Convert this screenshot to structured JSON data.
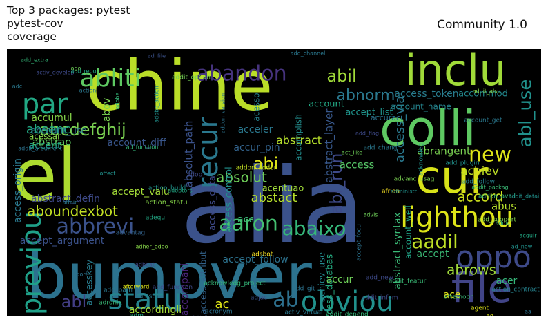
{
  "title_left": "Top 3 packages: pytest\npytest-cov\ncoverage",
  "title_right": "Community 1.0",
  "chart_data": {
    "type": "wordcloud",
    "background": "#000000",
    "colormap": "viridis",
    "words": [
      {
        "text": "alia",
        "weight": 1.0,
        "color": "#3b528b"
      },
      {
        "text": "chine",
        "weight": 0.82,
        "color": "#bade28"
      },
      {
        "text": "bumpver",
        "weight": 0.8,
        "color": "#2c728e"
      },
      {
        "text": "el",
        "weight": 0.78,
        "color": "#addc30"
      },
      {
        "text": "colli",
        "weight": 0.62,
        "color": "#5ec962"
      },
      {
        "text": "inclu",
        "weight": 0.58,
        "color": "#a0da39"
      },
      {
        "text": "cur",
        "weight": 0.55,
        "color": "#d8e219"
      },
      {
        "text": "file",
        "weight": 0.45,
        "color": "#414487"
      },
      {
        "text": "lighthou",
        "weight": 0.4,
        "color": "#dde318"
      },
      {
        "text": "oppo",
        "weight": 0.36,
        "color": "#3e4a89"
      },
      {
        "text": "recur",
        "weight": 0.35,
        "color": "#2a788e"
      },
      {
        "text": "statu",
        "weight": 0.33,
        "color": "#25848e"
      },
      {
        "text": "obviou",
        "weight": 0.32,
        "color": "#21918c"
      },
      {
        "text": "previou",
        "weight": 0.3,
        "color": "#1fa088"
      },
      {
        "text": "par",
        "weight": 0.3,
        "color": "#22a884"
      },
      {
        "text": "abliti",
        "weight": 0.28,
        "color": "#5ec962"
      },
      {
        "text": "abandon",
        "weight": 0.26,
        "color": "#46337e"
      },
      {
        "text": "aaron",
        "weight": 0.25,
        "color": "#44bf70"
      },
      {
        "text": "abbrevi",
        "weight": 0.25,
        "color": "#3b528b"
      },
      {
        "text": "ab",
        "weight": 0.26,
        "color": "#2d708e"
      },
      {
        "text": "new",
        "weight": 0.24,
        "color": "#dde318"
      },
      {
        "text": "abaixo",
        "weight": 0.24,
        "color": "#35b779"
      },
      {
        "text": "aadil",
        "weight": 0.23,
        "color": "#bddf26"
      },
      {
        "text": "abcdefghij",
        "weight": 0.21,
        "color": "#7ad151"
      },
      {
        "text": "abl_run",
        "weight": 0.2,
        "color": "#3e4a89"
      },
      {
        "text": "abl_use",
        "weight": 0.2,
        "color": "#21918c"
      },
      {
        "text": "abl",
        "weight": 0.17,
        "color": "#433e85"
      },
      {
        "text": "abi",
        "weight": 0.18,
        "color": "#dde318"
      },
      {
        "text": "abil",
        "weight": 0.18,
        "color": "#a0da39"
      },
      {
        "text": "abnorm",
        "weight": 0.16,
        "color": "#2a788e"
      },
      {
        "text": "abrows",
        "weight": 0.16,
        "color": "#9fda3a"
      },
      {
        "text": "absolut",
        "weight": 0.15,
        "color": "#6ece58"
      },
      {
        "text": "absolut_path",
        "weight": 0.14,
        "color": "#3b528b"
      },
      {
        "text": "abstract",
        "weight": 0.15,
        "color": "#b5de2b"
      },
      {
        "text": "abstact",
        "weight": 0.15,
        "color": "#b5de2b"
      },
      {
        "text": "abstract_layer",
        "weight": 0.14,
        "color": "#38588c"
      },
      {
        "text": "accord",
        "weight": 0.15,
        "color": "#cde11d"
      },
      {
        "text": "abrangent",
        "weight": 0.14,
        "color": "#7ad151"
      },
      {
        "text": "achiev",
        "weight": 0.14,
        "color": "#bddf26"
      },
      {
        "text": "aboundexbot",
        "weight": 0.15,
        "color": "#c2df23"
      },
      {
        "text": "absenc",
        "weight": 0.13,
        "color": "#22a884"
      },
      {
        "text": "abstrao",
        "weight": 0.12,
        "color": "#5ec962"
      },
      {
        "text": "accumul",
        "weight": 0.12,
        "color": "#86d549"
      },
      {
        "text": "access_via",
        "weight": 0.12,
        "color": "#2a788e"
      },
      {
        "text": "access_token",
        "weight": 0.11,
        "color": "#287c8e"
      },
      {
        "text": "accommod",
        "weight": 0.1,
        "color": "#23898e"
      },
      {
        "text": "accept_list",
        "weight": 0.11,
        "color": "#1f948c"
      },
      {
        "text": "account_name",
        "weight": 0.1,
        "color": "#25848e"
      },
      {
        "text": "accuraci",
        "weight": 0.09,
        "color": "#2c728e"
      },
      {
        "text": "abstract_syntax",
        "weight": 0.11,
        "color": "#3aba76"
      },
      {
        "text": "account_well",
        "weight": 0.1,
        "color": "#20a386"
      },
      {
        "text": "access_origin",
        "weight": 0.11,
        "color": "#2a788e"
      },
      {
        "text": "access_data",
        "weight": 0.11,
        "color": "#3e4a89"
      },
      {
        "text": "access_control",
        "weight": 0.11,
        "color": "#21918c"
      },
      {
        "text": "access_attribut",
        "weight": 0.1,
        "color": "#33638d"
      },
      {
        "text": "access_databas",
        "weight": 0.1,
        "color": "#25ac82"
      },
      {
        "text": "accept_valu",
        "weight": 0.11,
        "color": "#a2da37"
      },
      {
        "text": "accept_argument",
        "weight": 0.11,
        "color": "#3b528b"
      },
      {
        "text": "accept_follow",
        "weight": 0.1,
        "color": "#2c728e"
      },
      {
        "text": "abstract_defin",
        "weight": 0.11,
        "color": "#3e4a89"
      },
      {
        "text": "account_diff",
        "weight": 0.1,
        "color": "#39568c"
      },
      {
        "text": "account_use",
        "weight": 0.1,
        "color": "#2a788e"
      },
      {
        "text": "account",
        "weight": 0.1,
        "color": "#22a884"
      },
      {
        "text": "accent",
        "weight": 0.11,
        "color": "#20a386"
      },
      {
        "text": "acceler",
        "weight": 0.1,
        "color": "#2a788e"
      },
      {
        "text": "accur_pin",
        "weight": 0.1,
        "color": "#33638d"
      },
      {
        "text": "acentuao",
        "weight": 0.09,
        "color": "#a0da39"
      },
      {
        "text": "accomplish",
        "weight": 0.09,
        "color": "#228d8d"
      },
      {
        "text": "accordingli",
        "weight": 0.1,
        "color": "#a5db36"
      },
      {
        "text": "accompani",
        "weight": 0.1,
        "color": "#482475"
      },
      {
        "text": "accesskey",
        "weight": 0.09,
        "color": "#287c8e"
      },
      {
        "text": "accept",
        "weight": 0.1,
        "color": "#3aba76"
      },
      {
        "text": "access",
        "weight": 0.1,
        "color": "#56c667"
      },
      {
        "text": "acessar",
        "weight": 0.09,
        "color": "#86d549"
      },
      {
        "text": "acesso",
        "weight": 0.08,
        "color": "#26828e"
      },
      {
        "text": "abus",
        "weight": 0.1,
        "color": "#b5de2b"
      },
      {
        "text": "abov",
        "weight": 0.1,
        "color": "#7ad151"
      },
      {
        "text": "acc",
        "weight": 0.09,
        "color": "#3aba76"
      },
      {
        "text": "ac",
        "weight": 0.1,
        "color": "#dde318"
      },
      {
        "text": "accur",
        "weight": 0.09,
        "color": "#6ece58"
      },
      {
        "text": "achiev_use",
        "weight": 0.09,
        "color": "#23898e"
      },
      {
        "text": "ace",
        "weight": 0.09,
        "color": "#dde318"
      },
      {
        "text": "acer",
        "weight": 0.08,
        "color": "#35b779"
      },
      {
        "text": "action_contract",
        "weight": 0.06,
        "color": "#26828e"
      },
      {
        "text": "accept_focu",
        "weight": 0.06,
        "color": "#2c728e"
      },
      {
        "text": "add_function",
        "weight": 0.05,
        "color": "#3e4a89"
      },
      {
        "text": "addit_featur",
        "weight": 0.05,
        "color": "#3aba76"
      },
      {
        "text": "addit_option",
        "weight": 0.05,
        "color": "#75d054"
      },
      {
        "text": "add_follow",
        "weight": 0.05,
        "color": "#26828e"
      },
      {
        "text": "addon_avail",
        "weight": 0.05,
        "color": "#35b779"
      },
      {
        "text": "add_support",
        "weight": 0.05,
        "color": "#86d549"
      },
      {
        "text": "advanc_usag",
        "weight": 0.05,
        "color": "#7ad151"
      },
      {
        "text": "add_chang",
        "weight": 0.05,
        "color": "#2a788e"
      },
      {
        "text": "add_plugin",
        "weight": 0.05,
        "color": "#21918c"
      },
      {
        "text": "add_new",
        "weight": 0.05,
        "color": "#3e4a89"
      },
      {
        "text": "add_git",
        "weight": 0.05,
        "color": "#2c728e"
      },
      {
        "text": "adjust",
        "weight": 0.05,
        "color": "#2a788e"
      },
      {
        "text": "adsbot",
        "weight": 0.05,
        "color": "#fde725"
      },
      {
        "text": "addit_infom",
        "weight": 0.05,
        "color": "#3e4a89"
      },
      {
        "text": "addit_depend",
        "weight": 0.05,
        "color": "#35b779"
      },
      {
        "text": "afternoon",
        "weight": 0.05,
        "color": "#3aba76"
      },
      {
        "text": "agent",
        "weight": 0.05,
        "color": "#dde318"
      },
      {
        "text": "action_build",
        "weight": 0.05,
        "color": "#21918c"
      },
      {
        "text": "action_statu",
        "weight": 0.06,
        "color": "#86d549"
      },
      {
        "text": "advantag",
        "weight": 0.05,
        "color": "#33638d"
      },
      {
        "text": "adop",
        "weight": 0.05,
        "color": "#3e4a89"
      },
      {
        "text": "adequ",
        "weight": 0.05,
        "color": "#22a884"
      },
      {
        "text": "addon_addon",
        "weight": 0.05,
        "color": "#c2df23"
      },
      {
        "text": "activ_virtual",
        "weight": 0.05,
        "color": "#2a788e"
      },
      {
        "text": "acronym",
        "weight": 0.05,
        "color": "#2c728e"
      },
      {
        "text": "adronix",
        "weight": 0.05,
        "color": "#3aba76"
      },
      {
        "text": "add_path",
        "weight": 0.05,
        "color": "#2a788e"
      },
      {
        "text": "adm",
        "weight": 0.05,
        "color": "#22a884"
      },
      {
        "text": "adjac",
        "weight": 0.05,
        "color": "#3b528b"
      },
      {
        "text": "acknowleg",
        "weight": 0.06,
        "color": "#21918c"
      },
      {
        "text": "account_get",
        "weight": 0.06,
        "color": "#2a788e"
      },
      {
        "text": "afrion",
        "weight": 0.05,
        "color": "#fde725"
      },
      {
        "text": "acknowledg_project",
        "weight": 0.05,
        "color": "#35b779"
      },
      {
        "text": "aa",
        "weight": 0.04,
        "color": "#2c728e"
      },
      {
        "text": "ad_new",
        "weight": 0.04,
        "color": "#21918c"
      },
      {
        "text": "activ_develop",
        "weight": 0.04,
        "color": "#3e4a89"
      },
      {
        "text": "add_extra",
        "weight": 0.04,
        "color": "#35b779"
      },
      {
        "text": "ago",
        "weight": 0.04,
        "color": "#6ece58"
      },
      {
        "text": "ad_file",
        "weight": 0.04,
        "color": "#3b528b"
      },
      {
        "text": "add_channel",
        "weight": 0.04,
        "color": "#2a788e"
      },
      {
        "text": "add_repo",
        "weight": 0.04,
        "color": "#22a884"
      },
      {
        "text": "addit_also",
        "weight": 0.04,
        "color": "#86d549"
      },
      {
        "text": "affect",
        "weight": 0.04,
        "color": "#21918c"
      },
      {
        "text": "addit_argument",
        "weight": 0.04,
        "color": "#2c728e"
      },
      {
        "text": "add_flag",
        "weight": 0.04,
        "color": "#3e4a89"
      },
      {
        "text": "ad_function",
        "weight": 0.04,
        "color": "#35b779"
      },
      {
        "text": "advis",
        "weight": 0.04,
        "color": "#6ece58"
      },
      {
        "text": "affair",
        "weight": 0.04,
        "color": "#2a788e"
      },
      {
        "text": "afterward",
        "weight": 0.04,
        "color": "#dde318"
      },
      {
        "text": "adorf",
        "weight": 0.04,
        "color": "#2c728e"
      },
      {
        "text": "addit_packag",
        "weight": 0.04,
        "color": "#3aba76"
      },
      {
        "text": "addit_detail",
        "weight": 0.04,
        "color": "#21918c"
      },
      {
        "text": "adher_odoo",
        "weight": 0.04,
        "color": "#86d549"
      },
      {
        "text": "act_like",
        "weight": 0.04,
        "color": "#6ece58"
      },
      {
        "text": "adbeat",
        "weight": 0.04,
        "color": "#3e4a89"
      },
      {
        "text": "action",
        "weight": 0.04,
        "color": "#2a788e"
      },
      {
        "text": "ag",
        "weight": 0.04,
        "color": "#dde318"
      },
      {
        "text": "administr",
        "weight": 0.04,
        "color": "#21918c"
      },
      {
        "text": "addit_list",
        "weight": 0.04,
        "color": "#3b528b"
      },
      {
        "text": "addon_version",
        "weight": 0.04,
        "color": "#2c728e"
      },
      {
        "text": "acquir",
        "weight": 0.04,
        "color": "#22a884"
      },
      {
        "text": "addict",
        "weight": 0.04,
        "color": "#3aba76"
      },
      {
        "text": "adobe",
        "weight": 0.04,
        "color": "#35b779"
      },
      {
        "text": "adobe_action",
        "weight": 0.04,
        "color": "#21918c"
      },
      {
        "text": "adoptors",
        "weight": 0.04,
        "color": "#22a884"
      },
      {
        "text": "adc",
        "weight": 0.04,
        "color": "#2a788e"
      }
    ]
  }
}
